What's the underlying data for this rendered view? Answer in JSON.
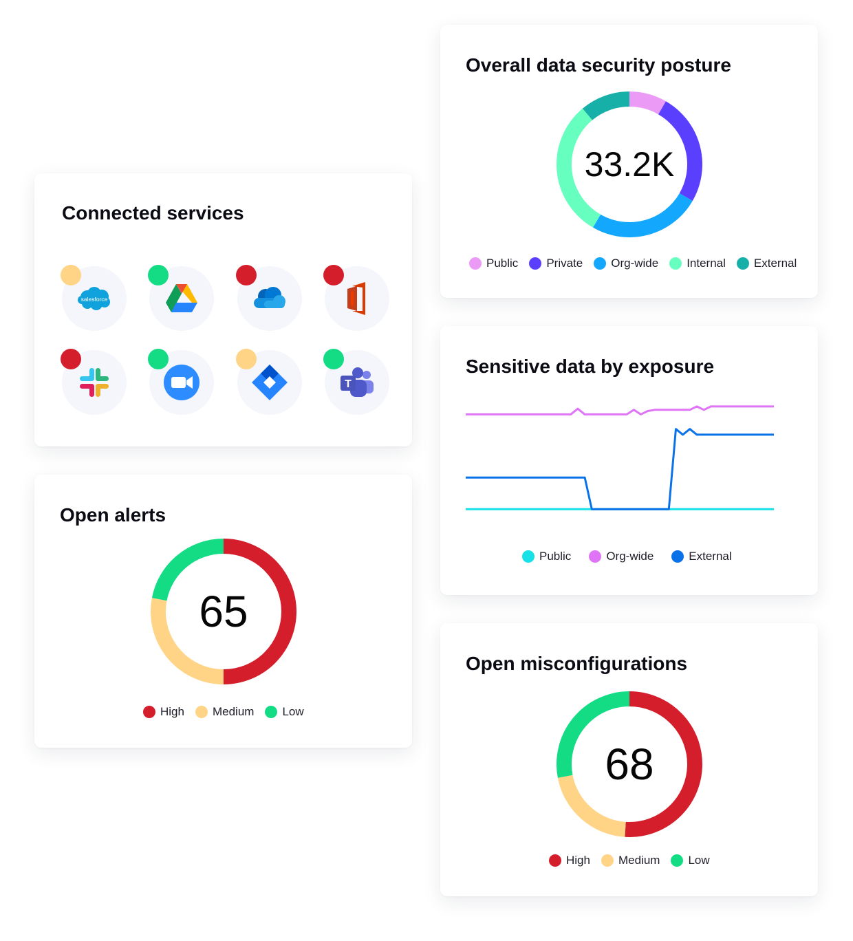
{
  "connected_services": {
    "title": "Connected services",
    "services": [
      {
        "name": "salesforce",
        "label": "salesforce",
        "status_color": "#FFD486"
      },
      {
        "name": "google-drive",
        "label": "",
        "status_color": "#13DC85"
      },
      {
        "name": "onedrive",
        "label": "",
        "status_color": "#D41E2C"
      },
      {
        "name": "microsoft-office",
        "label": "",
        "status_color": "#D41E2C"
      },
      {
        "name": "slack",
        "label": "",
        "status_color": "#D41E2C"
      },
      {
        "name": "zoom",
        "label": "",
        "status_color": "#13DC85"
      },
      {
        "name": "jira",
        "label": "",
        "status_color": "#FFD486"
      },
      {
        "name": "microsoft-teams",
        "label": "T",
        "status_color": "#13DC85"
      }
    ]
  },
  "chart_data": [
    {
      "id": "posture",
      "type": "pie",
      "title": "Overall data security posture",
      "center_value": "33.2K",
      "categories": [
        "Public",
        "Private",
        "Org-wide",
        "Internal",
        "External"
      ],
      "colors": [
        "#EB9BF6",
        "#5B3FFF",
        "#13A8FE",
        "#67FFBF",
        "#17B0A8"
      ],
      "values": [
        8.33,
        25,
        25,
        30.56,
        11.11
      ],
      "legend_position": "bottom"
    },
    {
      "id": "exposure",
      "type": "line",
      "title": "Sensitive data by exposure",
      "x": [
        0,
        1,
        2,
        3,
        4,
        5,
        6,
        7,
        8,
        9,
        10,
        11,
        12,
        13,
        14,
        15,
        16,
        17,
        18,
        19,
        20,
        21,
        22,
        23,
        24,
        25,
        26,
        27,
        28,
        29,
        30,
        31,
        32,
        33,
        34,
        35,
        36,
        37,
        38,
        39,
        40,
        41,
        42,
        43,
        44
      ],
      "series": [
        {
          "name": "Public",
          "color": "#16E1E6",
          "values": [
            6,
            6,
            6,
            6,
            6,
            6,
            6,
            6,
            6,
            6,
            6,
            6,
            6,
            6,
            6,
            6,
            6,
            6,
            6,
            6,
            6,
            6,
            6,
            6,
            6,
            6,
            6,
            6,
            6,
            6,
            6,
            6,
            6,
            6,
            6,
            6,
            6,
            6,
            6,
            6,
            6,
            6,
            6,
            6,
            6
          ]
        },
        {
          "name": "Org-wide",
          "color": "#E074F6",
          "values": [
            90,
            90,
            90,
            90,
            90,
            90,
            90,
            90,
            90,
            90,
            90,
            90,
            90,
            90,
            90,
            90,
            95,
            90,
            90,
            90,
            90,
            90,
            90,
            90,
            94,
            90,
            93,
            94,
            94,
            94,
            94,
            94,
            94,
            97,
            94,
            97,
            97,
            97,
            97,
            97,
            97,
            97,
            97,
            97,
            97
          ]
        },
        {
          "name": "External",
          "color": "#0A72E8",
          "values": [
            34,
            34,
            34,
            34,
            34,
            34,
            34,
            34,
            34,
            34,
            34,
            34,
            34,
            34,
            34,
            34,
            34,
            34,
            6,
            6,
            6,
            6,
            6,
            6,
            6,
            6,
            6,
            6,
            6,
            6,
            77,
            72,
            77,
            72,
            72,
            72,
            72,
            72,
            72,
            72,
            72,
            72,
            72,
            72,
            72
          ]
        }
      ],
      "legend_position": "bottom",
      "grid": false
    },
    {
      "id": "alerts",
      "type": "pie",
      "title": "Open alerts",
      "center_value": "65",
      "categories": [
        "High",
        "Medium",
        "Low"
      ],
      "colors": [
        "#D41E2C",
        "#FFD486",
        "#13DC85"
      ],
      "values": [
        50,
        28,
        22
      ],
      "legend_position": "bottom"
    },
    {
      "id": "misconfig",
      "type": "pie",
      "title": "Open misconfigurations",
      "center_value": "68",
      "categories": [
        "High",
        "Medium",
        "Low"
      ],
      "colors": [
        "#D41E2C",
        "#FFD486",
        "#13DC85"
      ],
      "values": [
        51,
        21,
        28
      ],
      "legend_position": "bottom"
    }
  ]
}
